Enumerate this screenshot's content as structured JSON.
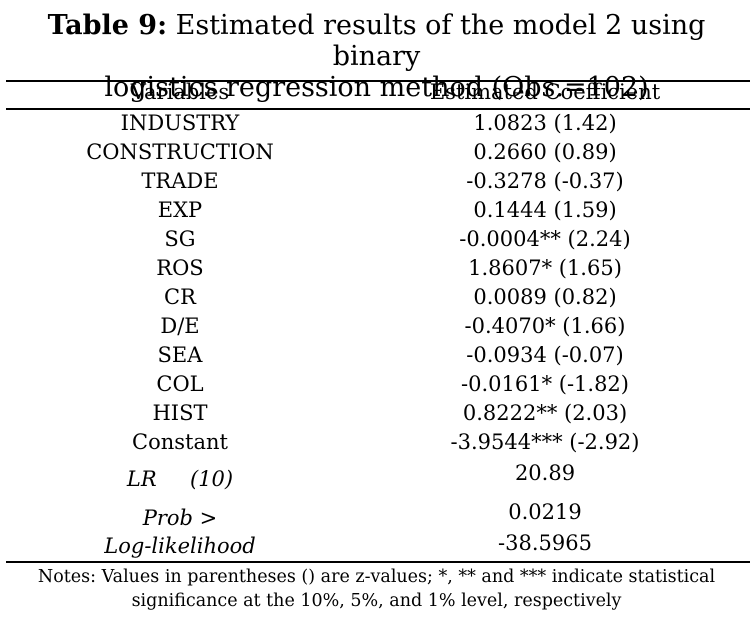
{
  "caption": {
    "label": "Table 9:",
    "line1": "Estimated results of the model 2 using binary",
    "line2": "logistics regression method (Obs.=102)"
  },
  "columns": [
    "Variables",
    "Estimated Coefficient"
  ],
  "rows": [
    {
      "variable": "INDUSTRY",
      "coef": "1.0823 (1.42)"
    },
    {
      "variable": "CONSTRUCTION",
      "coef": "0.2660 (0.89)"
    },
    {
      "variable": "TRADE",
      "coef": "-0.3278 (-0.37)"
    },
    {
      "variable": "EXP",
      "coef": "0.1444 (1.59)"
    },
    {
      "variable": "SG",
      "coef": "-0.0004** (2.24)"
    },
    {
      "variable": "ROS",
      "coef": "1.8607* (1.65)"
    },
    {
      "variable": "CR",
      "coef": "0.0089 (0.82)"
    },
    {
      "variable": "D/E",
      "coef": "-0.4070* (1.66)"
    },
    {
      "variable": "SEA",
      "coef": "-0.0934 (-0.07)"
    },
    {
      "variable": "COL",
      "coef": "-0.0161* (-1.82)"
    },
    {
      "variable": "HIST",
      "coef": "0.8222** (2.03)"
    },
    {
      "variable": "Constant",
      "coef": "-3.9544*** (-2.92)"
    }
  ],
  "stats": [
    {
      "label": "LR     (10)",
      "value": "20.89"
    },
    {
      "label": "Prob >",
      "value": "0.0219"
    },
    {
      "label": "Log-likelihood",
      "value": "-38.5965"
    }
  ],
  "notes": {
    "line1": "Notes: Values in parentheses () are z-values; *, ** and *** indicate statistical",
    "line2": "significance at the 10%, 5%, and 1% level, respectively"
  }
}
